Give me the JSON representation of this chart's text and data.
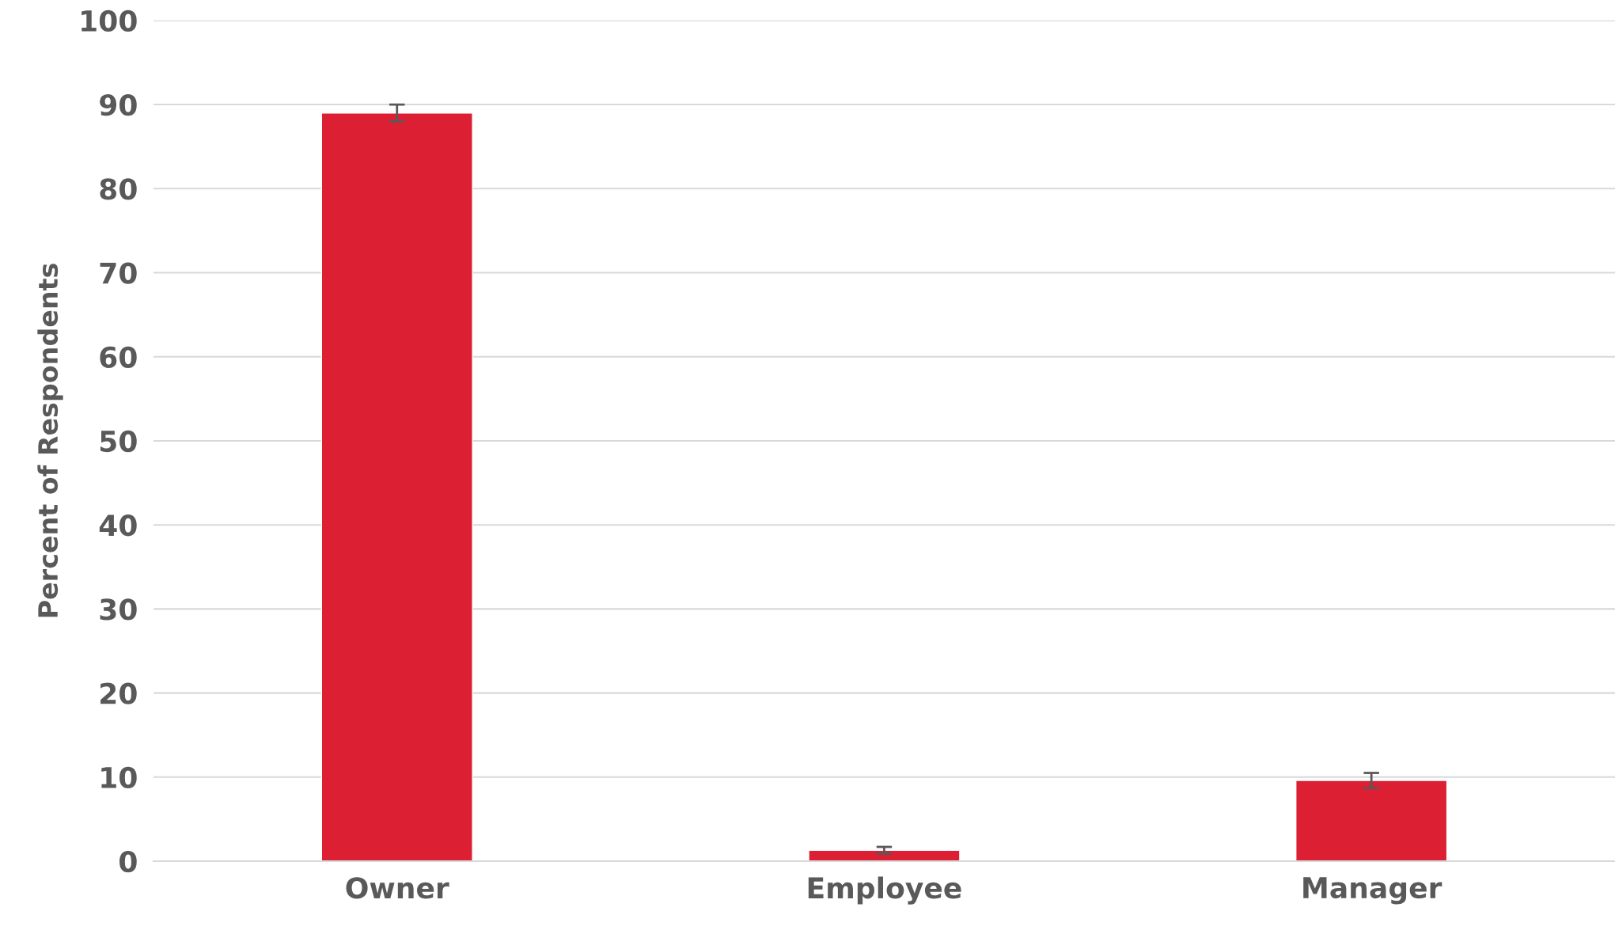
{
  "chart_data": {
    "type": "bar",
    "ylabel": "Percent of Respondents",
    "categories": [
      "Owner",
      "Employee",
      "Manager"
    ],
    "values": [
      89,
      1.3,
      9.6
    ],
    "errors": [
      1,
      0.4,
      0.9
    ],
    "color": "#dc1f33",
    "ylim": [
      0,
      100
    ],
    "yticks": [
      0,
      10,
      20,
      30,
      40,
      50,
      60,
      70,
      80,
      90,
      100
    ],
    "grid": "y"
  }
}
